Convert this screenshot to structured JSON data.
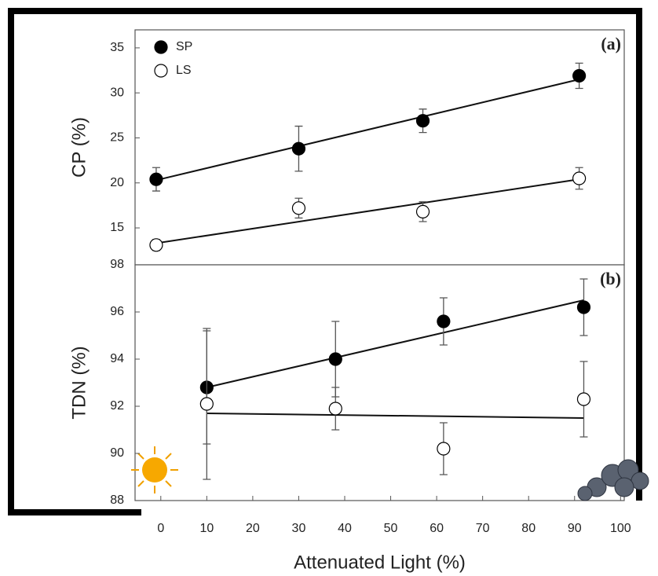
{
  "chart_data": [
    {
      "type": "scatter",
      "panel_label": "(a)",
      "ylabel": "CP (%)",
      "x": [
        -1,
        30,
        57,
        91
      ],
      "xlim": [
        -5.6,
        100.8
      ],
      "ylim": [
        10.9,
        37
      ],
      "yticks": [
        15,
        20,
        25,
        30,
        35
      ],
      "legend": "upper left",
      "series": [
        {
          "name": "SP",
          "color": "#000000",
          "values": [
            20.4,
            23.8,
            26.9,
            31.9
          ],
          "errors": [
            1.3,
            2.5,
            1.3,
            1.4
          ],
          "trend": {
            "x": [
              -1,
              91
            ],
            "y": [
              20.3,
              31.5
            ]
          }
        },
        {
          "name": "LS",
          "color": "#ffffff",
          "values": [
            13.1,
            17.2,
            16.8,
            20.5
          ],
          "errors": [
            0.6,
            1.1,
            1.1,
            1.2
          ],
          "trend": {
            "x": [
              -1,
              91
            ],
            "y": [
              13.3,
              20.4
            ]
          }
        }
      ]
    },
    {
      "type": "scatter",
      "panel_label": "(b)",
      "ylabel": "TDN (%)",
      "xlabel": "Attenuated Light (%)",
      "x": [
        10,
        38,
        61.5,
        92
      ],
      "xlim": [
        -5.6,
        100.8
      ],
      "xticks": [
        0,
        10,
        20,
        30,
        40,
        50,
        60,
        70,
        80,
        90,
        100
      ],
      "ylim": [
        88,
        98
      ],
      "yticks": [
        88,
        90,
        92,
        94,
        96,
        98
      ],
      "series": [
        {
          "name": "SP",
          "color": "#000000",
          "values": [
            92.8,
            94.0,
            95.6,
            96.2
          ],
          "errors": [
            2.4,
            1.6,
            1.0,
            1.2
          ],
          "trend": {
            "x": [
              10,
              92
            ],
            "y": [
              92.8,
              96.5
            ]
          }
        },
        {
          "name": "LS",
          "color": "#ffffff",
          "values": [
            92.1,
            91.9,
            90.2,
            92.3
          ],
          "errors": [
            3.2,
            0.9,
            1.1,
            1.6
          ],
          "trend": {
            "x": [
              10,
              92
            ],
            "y": [
              91.7,
              91.5
            ]
          }
        }
      ]
    }
  ]
}
